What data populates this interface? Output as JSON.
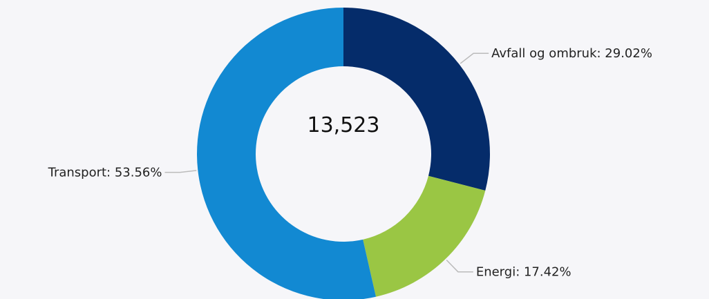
{
  "chart_data": {
    "type": "pie",
    "donut": true,
    "center_label": "13,523",
    "slices": [
      {
        "name": "Avfall og ombruk",
        "value": 29.02,
        "label": "Avfall og ombruk: 29.02%",
        "color": "#052c6a"
      },
      {
        "name": "Energi",
        "value": 17.42,
        "label": "Energi: 17.42%",
        "color": "#9ac644"
      },
      {
        "name": "Transport",
        "value": 53.56,
        "label": "Transport: 53.56%",
        "color": "#1289d2"
      }
    ],
    "legend": "none"
  }
}
